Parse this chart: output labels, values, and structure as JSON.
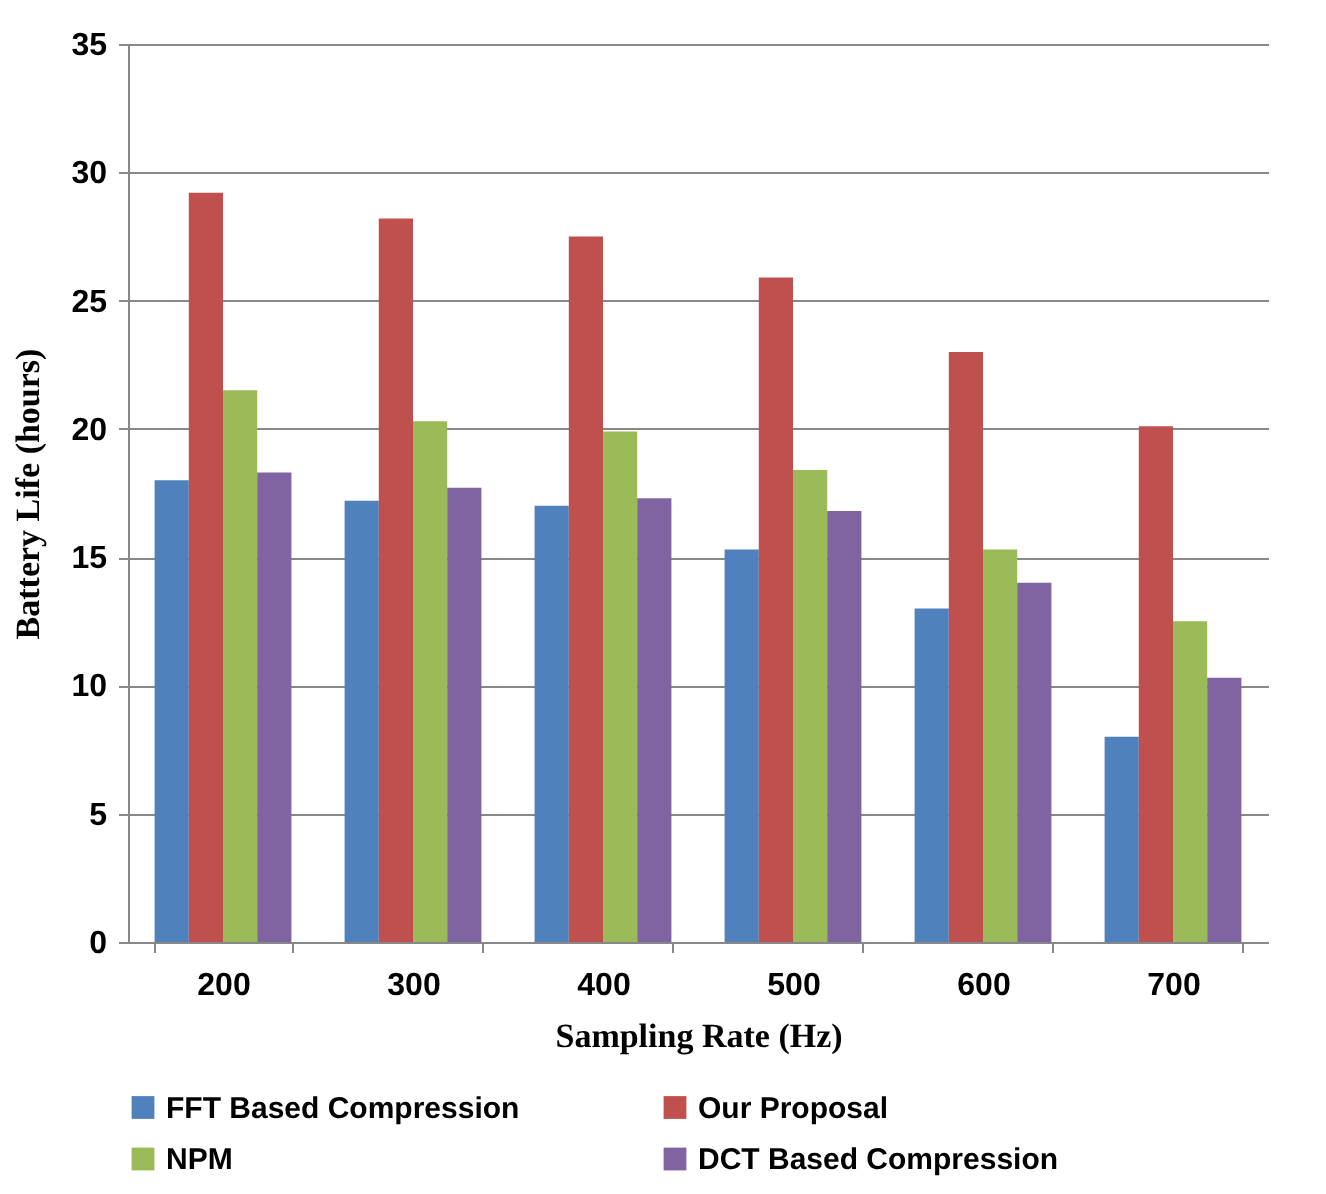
{
  "chart_data": {
    "type": "bar",
    "xlabel": "Sampling Rate (Hz)",
    "ylabel": "Battery Life (hours)",
    "categories": [
      "200",
      "300",
      "400",
      "500",
      "600",
      "700"
    ],
    "series": [
      {
        "name": "FFT Based Compression",
        "color": "#4f81bd",
        "values": [
          18,
          17.2,
          17,
          15.3,
          13,
          8
        ]
      },
      {
        "name": "Our Proposal",
        "color": "#c0504d",
        "values": [
          29.2,
          28.2,
          27.5,
          25.9,
          23,
          20.1
        ]
      },
      {
        "name": "NPM",
        "color": "#9bbb59",
        "values": [
          21.5,
          20.3,
          19.9,
          18.4,
          15.3,
          12.5
        ]
      },
      {
        "name": "DCT Based Compression",
        "color": "#8064a2",
        "values": [
          18.3,
          17.7,
          17.3,
          16.8,
          14,
          10.3
        ]
      }
    ],
    "ylim": [
      0,
      35
    ],
    "yticks": [
      0,
      5,
      10,
      15,
      20,
      25,
      30,
      35
    ],
    "grid": "y",
    "legend": "bottom"
  }
}
